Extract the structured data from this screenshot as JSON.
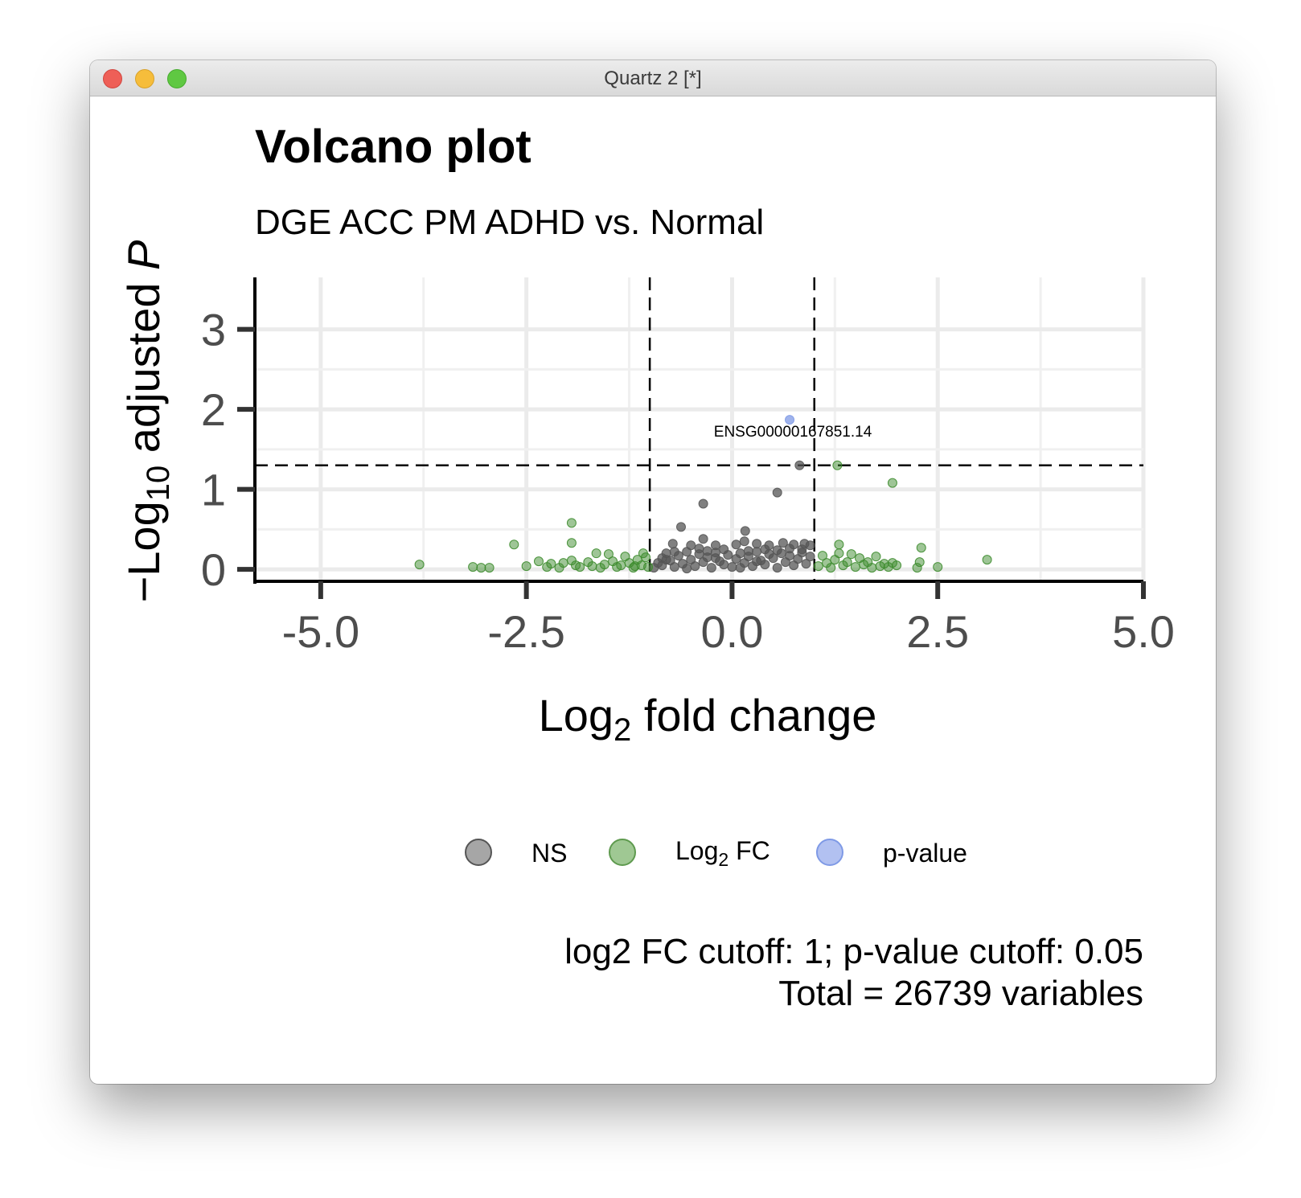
{
  "window": {
    "title": "Quartz 2 [*]"
  },
  "chart_data": {
    "type": "scatter",
    "title": "Volcano plot",
    "subtitle": "DGE ACC PM ADHD vs. Normal",
    "xlabel": {
      "base": "Log",
      "sub": "2",
      "rest": " fold change"
    },
    "ylabel": {
      "pre": "−Log",
      "sub": "10",
      "mid": " adjusted ",
      "italic": "P"
    },
    "xlim": [
      -5.8,
      5.0
    ],
    "ylim": [
      -0.15,
      3.65
    ],
    "x_ticks": [
      -5.0,
      -2.5,
      0.0,
      2.5,
      5.0
    ],
    "x_tick_labels": [
      "-5.0",
      "-2.5",
      "0.0",
      "2.5",
      "5.0"
    ],
    "y_ticks": [
      0,
      1,
      2,
      3
    ],
    "y_tick_labels": [
      "0",
      "1",
      "2",
      "3"
    ],
    "grid": true,
    "cutoff_lines": {
      "x": [
        -1,
        1
      ],
      "y": 1.3
    },
    "colors": {
      "NS": "#555555",
      "Log2 FC": "#3d8c2e",
      "p-value": "#7f9ae6"
    },
    "series": [
      {
        "name": "NS",
        "points": [
          [
            -0.95,
            0.02
          ],
          [
            -0.9,
            0.08
          ],
          [
            -0.85,
            0.14
          ],
          [
            -0.8,
            0.2
          ],
          [
            -0.85,
            0.05
          ],
          [
            -0.75,
            0.11
          ],
          [
            -0.7,
            0.03
          ],
          [
            -0.65,
            0.17
          ],
          [
            -0.6,
            0.07
          ],
          [
            -0.55,
            0.22
          ],
          [
            -0.5,
            0.12
          ],
          [
            -0.45,
            0.04
          ],
          [
            -0.4,
            0.19
          ],
          [
            -0.35,
            0.09
          ],
          [
            -0.3,
            0.15
          ],
          [
            -0.25,
            0.02
          ],
          [
            -0.2,
            0.21
          ],
          [
            -0.15,
            0.1
          ],
          [
            -0.1,
            0.06
          ],
          [
            -0.05,
            0.18
          ],
          [
            0.0,
            0.03
          ],
          [
            0.05,
            0.13
          ],
          [
            0.1,
            0.2
          ],
          [
            0.15,
            0.08
          ],
          [
            0.2,
            0.16
          ],
          [
            0.25,
            0.04
          ],
          [
            0.3,
            0.22
          ],
          [
            0.35,
            0.11
          ],
          [
            0.4,
            0.06
          ],
          [
            0.45,
            0.19
          ],
          [
            0.5,
            0.14
          ],
          [
            0.55,
            0.02
          ],
          [
            0.6,
            0.2
          ],
          [
            0.65,
            0.09
          ],
          [
            0.7,
            0.17
          ],
          [
            0.75,
            0.05
          ],
          [
            0.8,
            0.13
          ],
          [
            0.85,
            0.21
          ],
          [
            0.9,
            0.07
          ],
          [
            0.95,
            0.16
          ],
          [
            -0.7,
            0.22
          ],
          [
            -0.3,
            0.23
          ],
          [
            0.2,
            0.23
          ],
          [
            0.55,
            0.24
          ],
          [
            -0.55,
            0.01
          ],
          [
            -0.1,
            0.25
          ],
          [
            0.4,
            0.25
          ],
          [
            -0.8,
            0.12
          ],
          [
            0.7,
            0.26
          ],
          [
            -0.4,
            0.26
          ],
          [
            0.1,
            0.02
          ],
          [
            -0.2,
            0.14
          ],
          [
            0.3,
            0.1
          ],
          [
            -0.72,
            0.32
          ],
          [
            -0.5,
            0.3
          ],
          [
            -0.35,
            0.38
          ],
          [
            -0.2,
            0.3
          ],
          [
            0.05,
            0.31
          ],
          [
            0.3,
            0.32
          ],
          [
            0.45,
            0.3
          ],
          [
            0.62,
            0.33
          ],
          [
            0.75,
            0.31
          ],
          [
            0.88,
            0.32
          ],
          [
            -0.62,
            0.53
          ],
          [
            0.15,
            0.35
          ],
          [
            0.85,
            0.25
          ],
          [
            0.95,
            0.3
          ],
          [
            0.16,
            0.48
          ],
          [
            -0.35,
            0.82
          ],
          [
            0.55,
            0.96
          ],
          [
            0.82,
            1.3
          ]
        ]
      },
      {
        "name": "Log2 FC",
        "points": [
          [
            -3.8,
            0.06
          ],
          [
            -3.15,
            0.03
          ],
          [
            -3.05,
            0.02
          ],
          [
            -2.95,
            0.02
          ],
          [
            -2.65,
            0.31
          ],
          [
            -2.5,
            0.04
          ],
          [
            -2.35,
            0.1
          ],
          [
            -2.25,
            0.03
          ],
          [
            -2.2,
            0.07
          ],
          [
            -2.1,
            0.02
          ],
          [
            -2.05,
            0.08
          ],
          [
            -1.95,
            0.58
          ],
          [
            -1.95,
            0.33
          ],
          [
            -1.95,
            0.11
          ],
          [
            -1.9,
            0.05
          ],
          [
            -1.85,
            0.03
          ],
          [
            -1.75,
            0.09
          ],
          [
            -1.7,
            0.04
          ],
          [
            -1.65,
            0.2
          ],
          [
            -1.6,
            0.02
          ],
          [
            -1.55,
            0.06
          ],
          [
            -1.5,
            0.19
          ],
          [
            -1.45,
            0.1
          ],
          [
            -1.4,
            0.03
          ],
          [
            -1.35,
            0.05
          ],
          [
            -1.3,
            0.16
          ],
          [
            -1.25,
            0.08
          ],
          [
            -1.2,
            0.02
          ],
          [
            -1.15,
            0.12
          ],
          [
            -1.1,
            0.05
          ],
          [
            -1.05,
            0.15
          ],
          [
            -1.02,
            0.03
          ],
          [
            -1.08,
            0.2
          ],
          [
            -1.18,
            0.04
          ],
          [
            1.05,
            0.04
          ],
          [
            1.1,
            0.17
          ],
          [
            1.15,
            0.08
          ],
          [
            1.2,
            0.02
          ],
          [
            1.25,
            0.12
          ],
          [
            1.3,
            0.2
          ],
          [
            1.3,
            0.31
          ],
          [
            1.35,
            0.05
          ],
          [
            1.4,
            0.09
          ],
          [
            1.45,
            0.19
          ],
          [
            1.5,
            0.03
          ],
          [
            1.55,
            0.14
          ],
          [
            1.6,
            0.06
          ],
          [
            1.65,
            0.09
          ],
          [
            1.7,
            0.02
          ],
          [
            1.75,
            0.16
          ],
          [
            1.8,
            0.04
          ],
          [
            1.85,
            0.07
          ],
          [
            1.9,
            0.03
          ],
          [
            1.95,
            0.08
          ],
          [
            2.0,
            0.05
          ],
          [
            2.25,
            0.02
          ],
          [
            2.28,
            0.09
          ],
          [
            2.3,
            0.27
          ],
          [
            2.5,
            0.03
          ],
          [
            3.1,
            0.12
          ],
          [
            1.28,
            1.3
          ],
          [
            1.95,
            1.08
          ]
        ]
      },
      {
        "name": "p-value",
        "points": [
          [
            0.7,
            1.87
          ]
        ]
      }
    ],
    "point_labels": [
      {
        "text": "ENSG00000167851.14",
        "x": 0.7,
        "y": 1.87
      }
    ],
    "legend": {
      "position": "bottom",
      "items": [
        {
          "key": "NS",
          "label": "NS"
        },
        {
          "key": "Log2 FC",
          "label_base": "Log",
          "label_sub": "2",
          "label_rest": " FC"
        },
        {
          "key": "p-value",
          "label": "p-value"
        }
      ]
    },
    "caption": {
      "line1": "log2 FC cutoff: 1; p-value cutoff: 0.05",
      "line2": "Total = 26739 variables"
    }
  }
}
